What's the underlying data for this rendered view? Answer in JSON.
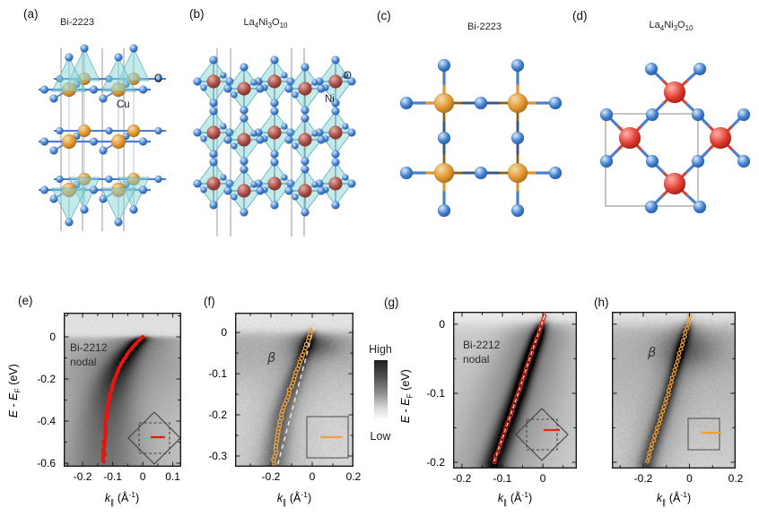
{
  "panels": {
    "a": {
      "letter": "(a)",
      "title": "Bi-2223",
      "label_o": "O",
      "label_cu": "Cu"
    },
    "b": {
      "letter": "(b)",
      "title_parts": [
        "La",
        "4",
        "Ni",
        "3",
        "O",
        "10"
      ],
      "label_o": "O",
      "label_ni": "Ni"
    },
    "c": {
      "letter": "(c)",
      "title": "Bi-2223"
    },
    "d": {
      "letter": "(d)",
      "title_parts": [
        "La",
        "4",
        "Ni",
        "3",
        "O",
        "10"
      ]
    },
    "e": {
      "letter": "(e)",
      "annotation_line1": "Bi-2212",
      "annotation_line2": "nodal"
    },
    "f": {
      "letter": "(f)",
      "annotation": "β"
    },
    "g": {
      "letter": "(g)",
      "annotation_line1": "Bi-2212",
      "annotation_line2": "nodal"
    },
    "h": {
      "letter": "(h)",
      "annotation": "β"
    }
  },
  "colorbar": {
    "high": "High",
    "low": "Low"
  },
  "axis_labels": {
    "x": {
      "sym": "k",
      "sub": "∥",
      "unit_pre": " (Å",
      "sup": "-1",
      "unit_post": ")"
    },
    "y": {
      "e1": "E",
      "dash": " - ",
      "e2": "E",
      "sub": "F",
      "unit": " (eV)"
    }
  },
  "colors": {
    "o_sphere": [
      "#d8e9fb",
      "#3e7fd0",
      "#1d4e92"
    ],
    "cu_sphere": [
      "#f8dca6",
      "#e2952f",
      "#96600f"
    ],
    "ni_sphere": [
      "#e6b0a8",
      "#a84c44",
      "#63281f"
    ],
    "nired_sphere": [
      "#ffb3aa",
      "#e23b2e",
      "#8c130a"
    ],
    "teal_fill": "rgba(137,214,214,0.5)",
    "teal_stroke": "rgba(80,170,175,0.85)",
    "bond_blue": "#4a7fd0",
    "bond_orange": "#e2952f",
    "bond_red": "#d5443a",
    "bond_brick": "#a85048",
    "cell_line": "#979797",
    "curve_red": "#e8150f",
    "curve_orange": "#f0a23e"
  },
  "chart_data": [
    {
      "id": "e",
      "type": "heatmap",
      "panel": "(e)",
      "annotation": "Bi-2212 nodal",
      "xlabel": "k∥ (Å⁻¹)",
      "ylabel": "E - EF (eV)",
      "xlim": [
        -0.263,
        0.128
      ],
      "ylim": [
        0.115,
        -0.617
      ],
      "xticks": {
        "major": [
          -0.2,
          -0.1,
          0,
          0.1
        ],
        "labels": [
          "-0.2",
          "-0.1",
          "0",
          "0.1"
        ],
        "minor": [
          -0.25,
          -0.15,
          -0.05,
          0.05
        ]
      },
      "yticks": {
        "major": [
          0,
          -0.2,
          -0.4,
          -0.6
        ],
        "labels": [
          "0",
          "-0.2",
          "-0.4",
          "-0.6"
        ],
        "minor": [
          0.1,
          -0.1,
          -0.3,
          -0.5
        ]
      },
      "band_E_k": [
        [
          0.0,
          0.0
        ],
        [
          -0.025,
          -0.0185
        ],
        [
          -0.05,
          -0.0344
        ],
        [
          -0.075,
          -0.0482
        ],
        [
          -0.1,
          -0.06
        ],
        [
          -0.125,
          -0.0703
        ],
        [
          -0.15,
          -0.0791
        ],
        [
          -0.175,
          -0.0868
        ],
        [
          -0.2,
          -0.0933
        ],
        [
          -0.225,
          -0.099
        ],
        [
          -0.25,
          -0.1039
        ],
        [
          -0.275,
          -0.1081
        ],
        [
          -0.3,
          -0.1118
        ],
        [
          -0.325,
          -0.1149
        ],
        [
          -0.35,
          -0.1177
        ],
        [
          -0.375,
          -0.12
        ],
        [
          -0.4,
          -0.122
        ],
        [
          -0.425,
          -0.1238
        ],
        [
          -0.45,
          -0.1253
        ],
        [
          -0.475,
          -0.1266
        ],
        [
          -0.5,
          -0.1277
        ],
        [
          -0.525,
          -0.1287
        ],
        [
          -0.55,
          -0.1295
        ],
        [
          -0.575,
          -0.1302
        ],
        [
          -0.6,
          -0.1308
        ]
      ],
      "curve_color": "#e8150f",
      "dashed": null,
      "inset": "brillouin-zone-diamond-with-nodal-cut-marker",
      "intensity_scale": {
        "high": "High",
        "low": "Low"
      }
    },
    {
      "id": "f",
      "type": "heatmap",
      "panel": "(f)",
      "annotation": "β",
      "xlabel": "k∥ (Å⁻¹)",
      "ylabel": "E - EF (eV)",
      "xlim": [
        -0.374,
        0.2
      ],
      "ylim": [
        0.048,
        -0.326
      ],
      "xticks": {
        "major": [
          -0.2,
          0,
          0.2
        ],
        "labels": [
          "-0.2",
          "0",
          "0.2"
        ],
        "minor": [
          -0.3,
          -0.1,
          0.1
        ]
      },
      "yticks": {
        "major": [
          0,
          -0.1,
          -0.2,
          -0.3
        ],
        "labels": [
          "0",
          "-0.1",
          "-0.2",
          "-0.3"
        ],
        "minor": [
          -0.05,
          -0.15,
          -0.25
        ]
      },
      "band_E_k": [
        [
          0.005,
          -0.004
        ],
        [
          -0.025,
          -0.023
        ],
        [
          -0.05,
          -0.042
        ],
        [
          -0.075,
          -0.06
        ],
        [
          -0.1,
          -0.079
        ],
        [
          -0.125,
          -0.097
        ],
        [
          -0.15,
          -0.116
        ],
        [
          -0.175,
          -0.134
        ],
        [
          -0.2,
          -0.148
        ],
        [
          -0.225,
          -0.158
        ],
        [
          -0.25,
          -0.166
        ],
        [
          -0.275,
          -0.174
        ],
        [
          -0.3,
          -0.182
        ],
        [
          -0.325,
          -0.189
        ],
        [
          -0.35,
          -0.196
        ]
      ],
      "curve_color": "#f0a23e",
      "dashed": {
        "from_Ek": [
          0.012,
          0.008
        ],
        "to_Ek": [
          -0.355,
          -0.185
        ],
        "color": "rgba(255,255,255,0.9)"
      },
      "inset": "brillouin-zone-square-with-cut-marker",
      "intensity_scale": {
        "high": "High",
        "low": "Low"
      }
    },
    {
      "id": "g",
      "type": "heatmap",
      "panel": "(g)",
      "annotation": "Bi-2212 nodal",
      "xlabel": "k∥ (Å⁻¹)",
      "ylabel": "E - EF (eV)",
      "xlim": [
        -0.222,
        0.084
      ],
      "ylim": [
        0.018,
        -0.209
      ],
      "xticks": {
        "major": [
          -0.2,
          -0.1,
          0
        ],
        "labels": [
          "-0.2",
          "-0.1",
          "0"
        ],
        "minor": [
          -0.15,
          -0.05,
          0.05
        ]
      },
      "yticks": {
        "major": [
          0,
          -0.1,
          -0.2
        ],
        "labels": [
          "0",
          "-0.1",
          "-0.2"
        ],
        "minor": [
          -0.05,
          -0.15
        ]
      },
      "band_E_k": [
        [
          0.012,
          0.004
        ],
        [
          0.0,
          -0.003
        ],
        [
          -0.025,
          -0.018
        ],
        [
          -0.05,
          -0.033
        ],
        [
          -0.075,
          -0.047
        ],
        [
          -0.1,
          -0.061
        ],
        [
          -0.125,
          -0.076
        ],
        [
          -0.15,
          -0.091
        ],
        [
          -0.175,
          -0.106
        ],
        [
          -0.2,
          -0.121
        ]
      ],
      "curve_color": "#e02718",
      "dashed": {
        "along_band": true,
        "color": "rgba(255,255,255,0.85)"
      },
      "inset": "brillouin-zone-diamond-with-nodal-cut-marker",
      "intensity_scale": {
        "high": "High",
        "low": "Low"
      }
    },
    {
      "id": "h",
      "type": "heatmap",
      "panel": "(h)",
      "annotation": "β",
      "xlabel": "k∥ (Å⁻¹)",
      "ylabel": "E - EF (eV)",
      "xlim": [
        -0.336,
        0.2
      ],
      "ylim": [
        0.018,
        -0.209
      ],
      "xticks": {
        "major": [
          -0.2,
          0,
          0.2
        ],
        "labels": [
          "-0.2",
          "0",
          "0.2"
        ],
        "minor": [
          -0.3,
          -0.1,
          0.1
        ]
      },
      "yticks": {
        "major": [
          0,
          -0.1,
          -0.2
        ],
        "labels": [],
        "minor": [
          -0.05,
          -0.15
        ]
      },
      "band_E_k": [
        [
          0.012,
          0.002
        ],
        [
          0.0,
          -0.006
        ],
        [
          -0.025,
          -0.028
        ],
        [
          -0.05,
          -0.05
        ],
        [
          -0.075,
          -0.071
        ],
        [
          -0.1,
          -0.092
        ],
        [
          -0.125,
          -0.115
        ],
        [
          -0.15,
          -0.139
        ],
        [
          -0.175,
          -0.162
        ],
        [
          -0.2,
          -0.184
        ]
      ],
      "curve_color": "#efa035",
      "dashed": null,
      "inset": "brillouin-zone-square-with-cut-marker",
      "intensity_scale": {
        "high": "High",
        "low": "Low"
      }
    }
  ]
}
